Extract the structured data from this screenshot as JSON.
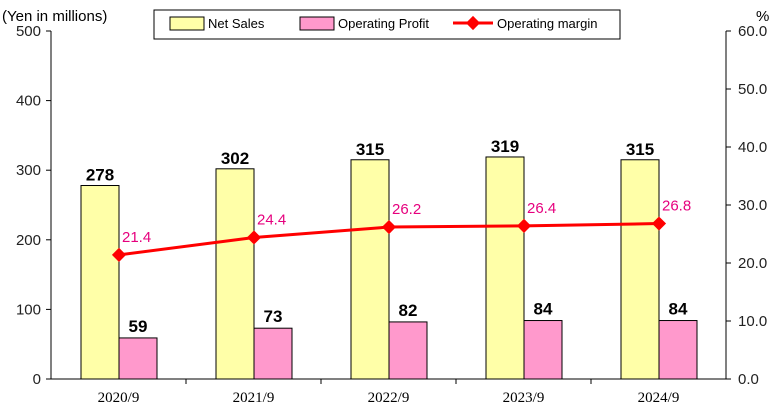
{
  "chart_data": {
    "type": "bar",
    "categories": [
      "2020/9",
      "2021/9",
      "2022/9",
      "2023/9",
      "2024/9"
    ],
    "series": [
      {
        "name": "Net Sales",
        "kind": "bar",
        "axis": "left",
        "values": [
          278,
          302,
          315,
          319,
          315
        ],
        "color": "#ffffa8"
      },
      {
        "name": "Operating Profit",
        "kind": "bar",
        "axis": "left",
        "values": [
          59,
          73,
          82,
          84,
          84
        ],
        "color": "#ff99cc"
      },
      {
        "name": "Operating margin",
        "kind": "line",
        "axis": "right",
        "values": [
          21.4,
          24.4,
          26.2,
          26.4,
          26.8
        ],
        "color": "#ff0000",
        "label_color": "#e6007e"
      }
    ],
    "ylabel_left": "(Yen in millions)",
    "ylabel_right": "%",
    "ylim_left": [
      0,
      500
    ],
    "ylim_right": [
      0,
      60
    ],
    "yticks_left": [
      "0",
      "100",
      "200",
      "300",
      "400",
      "500"
    ],
    "yticks_right": [
      "0.0",
      "10.0",
      "20.0",
      "30.0",
      "40.0",
      "50.0",
      "60.0"
    ],
    "grid": false,
    "legend_position": "top-center"
  }
}
